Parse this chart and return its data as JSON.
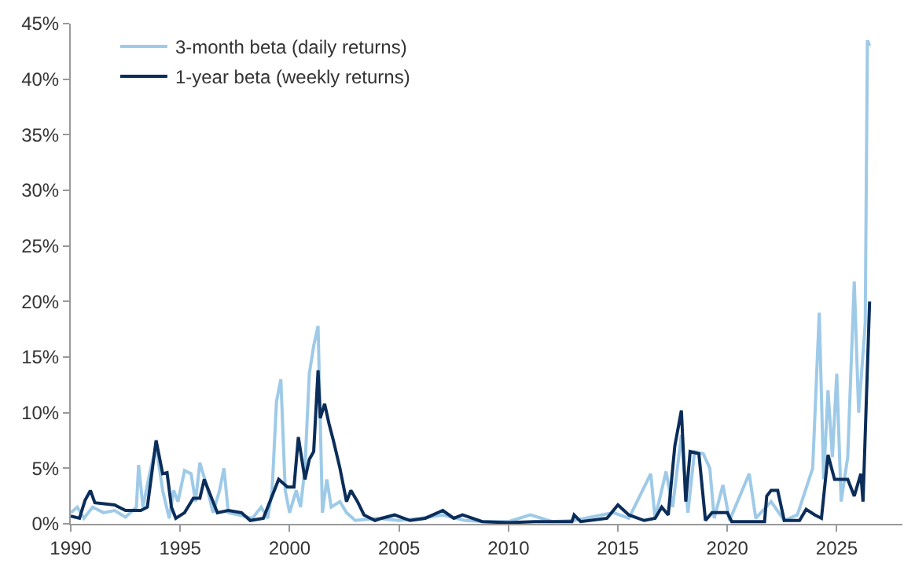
{
  "chart_data": {
    "type": "line",
    "legend": "top left",
    "grid": false,
    "marker": "none",
    "line_style": "solid",
    "xlim": [
      1990,
      2028
    ],
    "xticks": [
      1990,
      1995,
      2000,
      2005,
      2010,
      2015,
      2020,
      2025
    ],
    "ylim": [
      0,
      45
    ],
    "yticks": [
      {
        "value": 0,
        "label": "0%"
      },
      {
        "value": 5,
        "label": "5%"
      },
      {
        "value": 10,
        "label": "10%"
      },
      {
        "value": 15,
        "label": "15%"
      },
      {
        "value": 20,
        "label": "20%"
      },
      {
        "value": 25,
        "label": "25%"
      },
      {
        "value": 30,
        "label": "30%"
      },
      {
        "value": 35,
        "label": "35%"
      },
      {
        "value": 40,
        "label": "40%"
      },
      {
        "value": 45,
        "label": "45%"
      }
    ],
    "series": [
      {
        "name": "3-month beta (daily returns)",
        "color": "#9ecae8",
        "x": [
          1990,
          1990.3,
          1990.6,
          1991,
          1991.5,
          1992,
          1992.5,
          1993,
          1993.1,
          1993.3,
          1993.6,
          1993.9,
          1994.2,
          1994.5,
          1994.7,
          1994.9,
          1995.2,
          1995.5,
          1995.7,
          1995.9,
          1996.2,
          1996.5,
          1996.8,
          1997.0,
          1997.2,
          1997.7,
          1998.3,
          1998.7,
          1999.0,
          1999.2,
          1999.4,
          1999.6,
          1999.8,
          2000.0,
          2000.3,
          2000.5,
          2000.7,
          2000.9,
          2001.1,
          2001.3,
          2001.5,
          2001.7,
          2001.9,
          2002.3,
          2002.6,
          2003.0,
          2004,
          2005,
          2006,
          2007,
          2008,
          2009,
          2010,
          2011,
          2012,
          2013,
          2014,
          2014.8,
          2015.5,
          2016.5,
          2016.7,
          2017.2,
          2017.5,
          2017.9,
          2018.2,
          2018.5,
          2018.9,
          2019.2,
          2019.4,
          2019.8,
          2020.1,
          2021,
          2021.3,
          2022,
          2022.6,
          2023.2,
          2023.9,
          2024.2,
          2024.4,
          2024.6,
          2024.8,
          2025.0,
          2025.2,
          2025.5,
          2025.8,
          2026.0,
          2026.3,
          2026.4,
          2026.5
        ],
        "values": [
          1.0,
          1.5,
          0.5,
          1.5,
          1.0,
          1.2,
          0.6,
          1.5,
          5.3,
          1.5,
          4.5,
          7.0,
          3.0,
          0.5,
          3.0,
          2.0,
          4.8,
          4.5,
          2.0,
          5.5,
          3.5,
          1.0,
          3.0,
          5.0,
          1.0,
          0.8,
          0.5,
          1.5,
          0.5,
          3.0,
          11.0,
          13.0,
          3.0,
          1.0,
          3.0,
          1.5,
          5.0,
          13.5,
          16.0,
          17.8,
          1.0,
          4.0,
          1.5,
          2.0,
          1.0,
          0.3,
          0.5,
          0.3,
          0.5,
          0.8,
          0.3,
          0.2,
          0.2,
          0.8,
          0.2,
          0.3,
          0.7,
          1.0,
          0.5,
          4.5,
          0.5,
          4.7,
          1.5,
          8.0,
          1.0,
          6.5,
          6.3,
          5.0,
          0.5,
          3.5,
          0.3,
          4.5,
          0.5,
          2.0,
          0.3,
          0.8,
          5.0,
          19.0,
          4.0,
          12.0,
          6.0,
          13.5,
          2.0,
          6.0,
          21.8,
          10.0,
          18.0,
          43.5,
          43.0
        ]
      },
      {
        "name": "1-year beta (weekly returns)",
        "color": "#0b2d5a",
        "x": [
          1990,
          1990.4,
          1990.65,
          1990.9,
          1991.1,
          1992.0,
          1992.5,
          1993.2,
          1993.5,
          1993.9,
          1994.2,
          1994.4,
          1994.6,
          1994.8,
          1995.2,
          1995.6,
          1995.9,
          1996.1,
          1996.4,
          1996.7,
          1997.2,
          1997.8,
          1998.2,
          1998.8,
          1999.2,
          1999.5,
          1999.9,
          2000.2,
          2000.4,
          2000.7,
          2000.9,
          2001.1,
          2001.3,
          2001.4,
          2001.6,
          2001.8,
          2002.0,
          2002.3,
          2002.6,
          2002.8,
          2003.1,
          2003.4,
          2003.9,
          2004.2,
          2004.8,
          2005.5,
          2006.2,
          2007.0,
          2007.5,
          2007.9,
          2008.8,
          2010,
          2011.2,
          2012.9,
          2013,
          2013.3,
          2014.5,
          2015,
          2015.5,
          2016.2,
          2016.7,
          2017,
          2017.3,
          2017.6,
          2017.9,
          2018.1,
          2018.3,
          2018.7,
          2019.0,
          2019.3,
          2020,
          2020.2,
          2021.7,
          2021.8,
          2022.0,
          2022.3,
          2022.6,
          2023.3,
          2023.6,
          2024.0,
          2024.3,
          2024.6,
          2024.9,
          2025.5,
          2025.8,
          2026.1,
          2026.2,
          2026.5
        ],
        "values": [
          0.7,
          0.5,
          2.1,
          3.0,
          1.9,
          1.7,
          1.2,
          1.2,
          1.5,
          7.5,
          4.5,
          4.6,
          1.5,
          0.5,
          1.0,
          2.3,
          2.3,
          4.0,
          2.5,
          1.0,
          1.2,
          1.0,
          0.3,
          0.5,
          2.5,
          4.0,
          3.3,
          3.3,
          7.8,
          4.0,
          5.8,
          6.5,
          13.8,
          9.5,
          10.8,
          9.0,
          7.5,
          5.0,
          2.0,
          3.0,
          2.0,
          0.8,
          0.3,
          0.5,
          0.8,
          0.3,
          0.5,
          1.2,
          0.5,
          0.8,
          0.2,
          0.1,
          0.2,
          0.2,
          0.8,
          0.2,
          0.5,
          1.7,
          0.8,
          0.3,
          0.5,
          1.5,
          0.8,
          7.0,
          10.2,
          2.0,
          6.5,
          6.3,
          0.3,
          1.0,
          1.0,
          0.2,
          0.2,
          2.5,
          3.0,
          3.0,
          0.3,
          0.3,
          1.3,
          0.8,
          0.5,
          6.2,
          4.0,
          4.0,
          2.5,
          4.5,
          2.0,
          20.0
        ]
      }
    ]
  }
}
